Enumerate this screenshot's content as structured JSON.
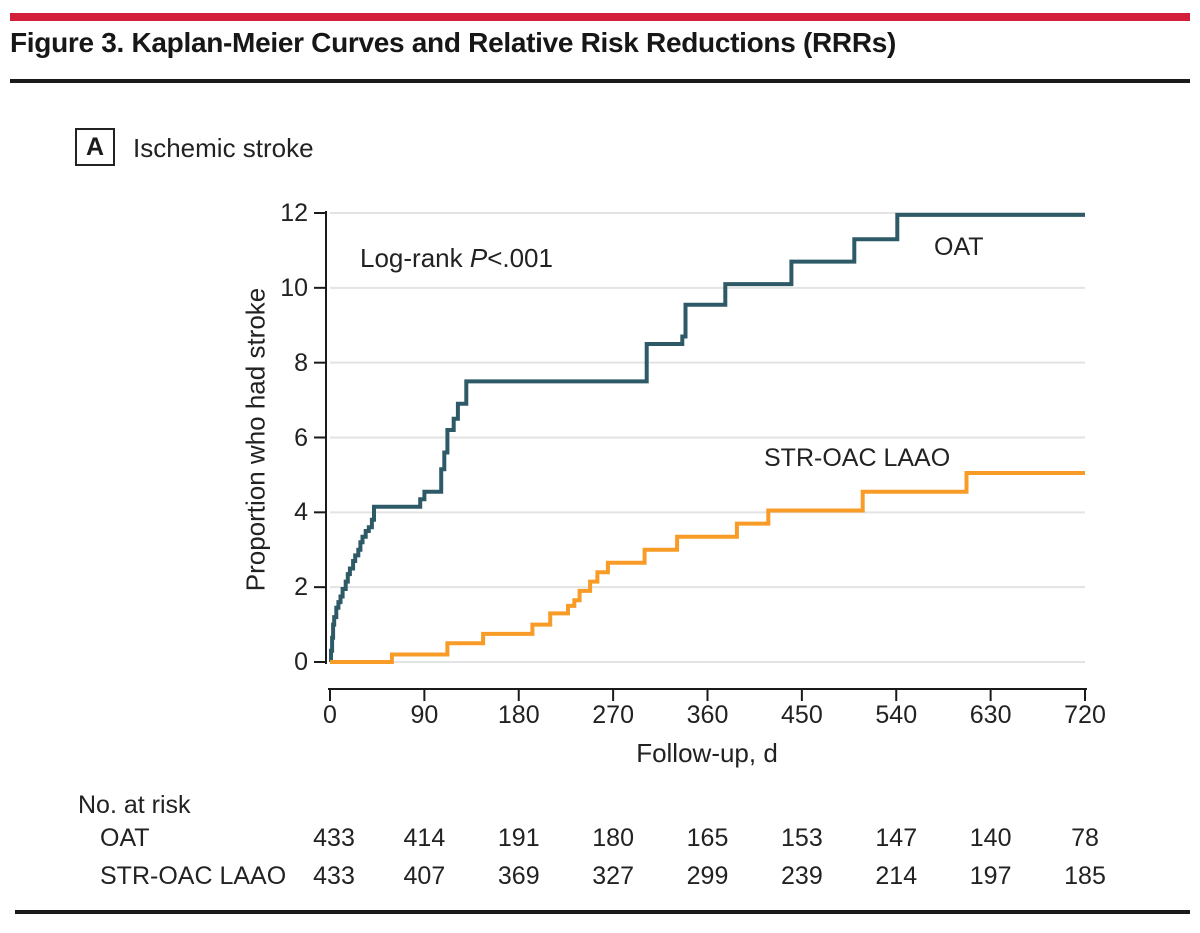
{
  "figure": {
    "title": "Figure 3. Kaplan-Meier Curves and Relative Risk Reductions (RRRs)",
    "panel_label": "A",
    "panel_title": "Ischemic stroke",
    "annotation_prefix": "Log-rank ",
    "annotation_p": "P",
    "annotation_suffix": "<.001"
  },
  "colors": {
    "accent_red": "#d41f3c",
    "oat_line": "#2e5a68",
    "laao_line": "#f89c27",
    "grid": "#e3e3e3",
    "axis": "#1a1a1a"
  },
  "chart_data": {
    "type": "line",
    "subtype": "kaplan-meier-step",
    "title": "Ischemic stroke",
    "xlabel": "Follow-up, d",
    "ylabel": "Proportion who had stroke",
    "xlim": [
      0,
      720
    ],
    "ylim": [
      0,
      12
    ],
    "xticks": [
      0,
      90,
      180,
      270,
      360,
      450,
      540,
      630,
      720
    ],
    "yticks": [
      0,
      2,
      4,
      6,
      8,
      10,
      12
    ],
    "grid": "horizontal",
    "annotation": "Log-rank P<.001",
    "legend_position": "inline-labels",
    "series": [
      {
        "name": "OAT",
        "color": "#2e5a68",
        "label_pos": {
          "day": 600,
          "value": 11.1
        },
        "points": [
          [
            0,
            0
          ],
          [
            1,
            0.3
          ],
          [
            2,
            0.65
          ],
          [
            3,
            1.0
          ],
          [
            4,
            1.2
          ],
          [
            6,
            1.45
          ],
          [
            8,
            1.6
          ],
          [
            10,
            1.75
          ],
          [
            12,
            1.95
          ],
          [
            15,
            2.15
          ],
          [
            17,
            2.35
          ],
          [
            19,
            2.5
          ],
          [
            22,
            2.7
          ],
          [
            24,
            2.85
          ],
          [
            27,
            3.0
          ],
          [
            29,
            3.2
          ],
          [
            31,
            3.35
          ],
          [
            34,
            3.5
          ],
          [
            37,
            3.6
          ],
          [
            40,
            3.8
          ],
          [
            42,
            4.15
          ],
          [
            86,
            4.35
          ],
          [
            90,
            4.55
          ],
          [
            106,
            5.15
          ],
          [
            109,
            5.6
          ],
          [
            112,
            6.2
          ],
          [
            118,
            6.5
          ],
          [
            122,
            6.9
          ],
          [
            130,
            7.5
          ],
          [
            302,
            8.5
          ],
          [
            336,
            8.7
          ],
          [
            339,
            9.55
          ],
          [
            377,
            10.1
          ],
          [
            440,
            10.7
          ],
          [
            500,
            11.3
          ],
          [
            541,
            11.95
          ],
          [
            720,
            11.95
          ]
        ]
      },
      {
        "name": "STR-OAC LAAO",
        "color": "#f89c27",
        "label_pos": {
          "day": 503,
          "value": 5.45
        },
        "points": [
          [
            0,
            0
          ],
          [
            59,
            0.2
          ],
          [
            112,
            0.5
          ],
          [
            146,
            0.75
          ],
          [
            193,
            1.0
          ],
          [
            210,
            1.3
          ],
          [
            227,
            1.5
          ],
          [
            233,
            1.65
          ],
          [
            238,
            1.9
          ],
          [
            248,
            2.15
          ],
          [
            255,
            2.4
          ],
          [
            265,
            2.65
          ],
          [
            300,
            3.0
          ],
          [
            331,
            3.35
          ],
          [
            388,
            3.7
          ],
          [
            418,
            4.05
          ],
          [
            508,
            4.55
          ],
          [
            607,
            5.05
          ],
          [
            720,
            5.05
          ]
        ]
      }
    ],
    "risk_table": {
      "title": "No. at risk",
      "timepoints": [
        0,
        90,
        180,
        270,
        360,
        450,
        540,
        630,
        720
      ],
      "rows": [
        {
          "label": "OAT",
          "values": [
            "433",
            "414",
            "191",
            "180",
            "165",
            "153",
            "147",
            "140",
            "78"
          ]
        },
        {
          "label": "STR-OAC LAAO",
          "values": [
            "433",
            "407",
            "369",
            "327",
            "299",
            "239",
            "214",
            "197",
            "185"
          ]
        }
      ]
    }
  }
}
